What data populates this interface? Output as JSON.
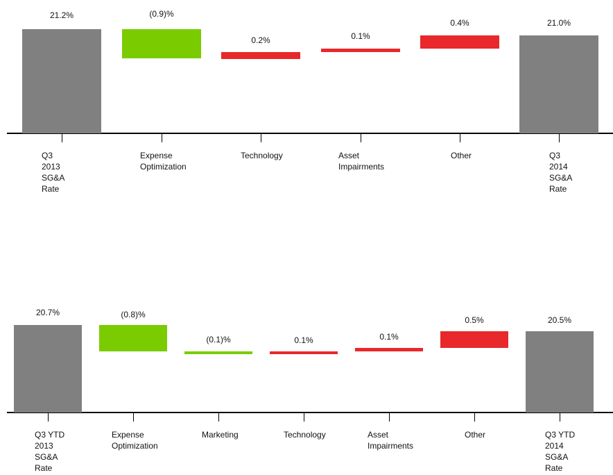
{
  "colors": {
    "total": "#808080",
    "decrease": "#7acc00",
    "increase": "#e8282a"
  },
  "chart_data": [
    {
      "type": "waterfall",
      "title": "",
      "categories": [
        [
          "Q3",
          "2013",
          "SG&A",
          "Rate"
        ],
        [
          "Expense",
          "Optimization"
        ],
        [
          "Technology"
        ],
        [
          "Asset",
          "Impairments"
        ],
        [
          "Other"
        ],
        [
          "Q3",
          "2014",
          "SG&A",
          "Rate"
        ]
      ],
      "values": [
        21.2,
        -0.9,
        0.2,
        0.1,
        0.4,
        21.0
      ],
      "kinds": [
        "total",
        "decrease",
        "increase",
        "increase",
        "increase",
        "total"
      ],
      "labels": [
        "21.2%",
        "(0.9)%",
        "0.2%",
        "0.1%",
        "0.4%",
        "21.0%"
      ],
      "unit": "%"
    },
    {
      "type": "waterfall",
      "title": "",
      "categories": [
        [
          "Q3 YTD",
          "2013",
          "SG&A",
          "Rate"
        ],
        [
          "Expense",
          "Optimization"
        ],
        [
          "Marketing"
        ],
        [
          "Technology"
        ],
        [
          "Asset",
          "Impairments"
        ],
        [
          "Other"
        ],
        [
          "Q3 YTD",
          "2014",
          "SG&A",
          "Rate"
        ]
      ],
      "values": [
        20.7,
        -0.8,
        -0.1,
        0.1,
        0.1,
        0.5,
        20.5
      ],
      "kinds": [
        "total",
        "decrease",
        "decrease",
        "increase",
        "increase",
        "increase",
        "total"
      ],
      "labels": [
        "20.7%",
        "(0.8)%",
        "(0.1)%",
        "0.1%",
        "0.1%",
        "0.5%",
        "20.5%"
      ],
      "unit": "%"
    }
  ]
}
